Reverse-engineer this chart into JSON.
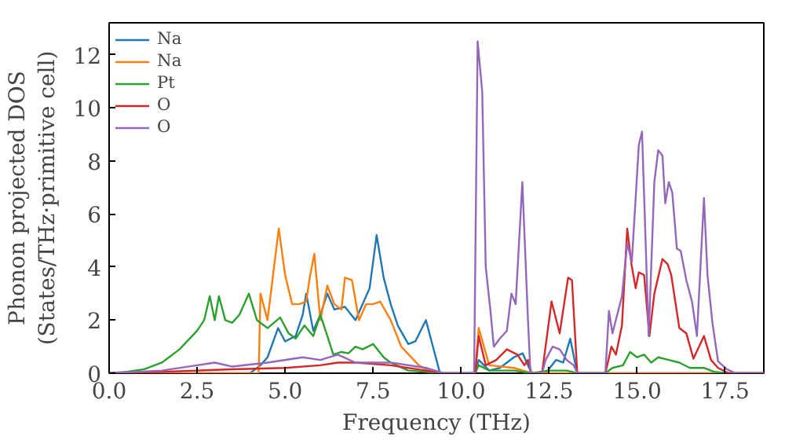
{
  "chart_data": {
    "type": "line",
    "xlabel": "Frequency (THz)",
    "ylabel": "Phonon projected DOS\n(States/THz·primitive cell)",
    "xlim": [
      0,
      18.6
    ],
    "ylim": [
      0,
      13.2
    ],
    "xticks": [
      {
        "value": 0,
        "label": "0.0"
      },
      {
        "value": 2.5,
        "label": "2.5"
      },
      {
        "value": 5,
        "label": "5.0"
      },
      {
        "value": 7.5,
        "label": "7.5"
      },
      {
        "value": 10,
        "label": "10.0"
      },
      {
        "value": 12.5,
        "label": "12.5"
      },
      {
        "value": 15,
        "label": "15.0"
      },
      {
        "value": 17.5,
        "label": "17.5"
      }
    ],
    "yticks": [
      0,
      2,
      4,
      6,
      8,
      10,
      12
    ],
    "grid": false,
    "legend": "top left",
    "marker": "none",
    "line_style": "solid",
    "series": [
      {
        "name": "Na",
        "color": "#1f77b4",
        "x": [
          0,
          4.0,
          4.3,
          4.5,
          4.8,
          5.0,
          5.3,
          5.5,
          5.6,
          5.8,
          6.0,
          6.2,
          6.4,
          6.7,
          7.0,
          7.2,
          7.4,
          7.6,
          7.8,
          8.0,
          8.2,
          8.5,
          8.7,
          9.0,
          9.2,
          9.4,
          10.4,
          10.5,
          10.8,
          11.1,
          11.5,
          11.75,
          12.0,
          12.4,
          12.7,
          12.9,
          13.1,
          13.3,
          18.6
        ],
        "values": [
          0,
          0,
          0.3,
          0.6,
          1.7,
          1.2,
          1.4,
          2.2,
          3.0,
          1.6,
          2.2,
          3.0,
          2.4,
          2.5,
          2.0,
          2.6,
          3.2,
          5.2,
          3.6,
          2.6,
          1.8,
          1.1,
          1.2,
          2.0,
          1.0,
          0,
          0,
          0.5,
          0.1,
          0.2,
          0.6,
          0.75,
          0,
          0,
          0.5,
          0.4,
          1.3,
          0,
          0
        ]
      },
      {
        "name": "Na",
        "color": "#ff7f0e",
        "x": [
          0,
          4.25,
          4.3,
          4.5,
          4.82,
          5.0,
          5.2,
          5.4,
          5.6,
          5.7,
          5.83,
          6.0,
          6.2,
          6.4,
          6.6,
          6.7,
          6.9,
          7.1,
          7.3,
          7.5,
          7.7,
          8.0,
          8.3,
          8.8,
          9.2,
          10.4,
          10.5,
          10.8,
          11.5,
          12.0,
          18.6
        ],
        "values": [
          0,
          0,
          3.0,
          2.0,
          5.45,
          3.7,
          2.6,
          2.6,
          2.7,
          3.6,
          4.5,
          2.0,
          3.3,
          2.6,
          2.4,
          3.6,
          3.5,
          2.0,
          2.6,
          2.6,
          2.7,
          2.0,
          1.0,
          0.3,
          0,
          0,
          1.7,
          0.3,
          0.2,
          0,
          0
        ]
      },
      {
        "name": "Pt",
        "color": "#2ca02c",
        "x": [
          0,
          0.5,
          1.0,
          1.5,
          2.0,
          2.5,
          2.7,
          2.86,
          3.0,
          3.12,
          3.3,
          3.5,
          3.7,
          3.97,
          4.2,
          4.5,
          4.86,
          5.1,
          5.3,
          5.55,
          5.8,
          6.0,
          6.2,
          6.37,
          6.6,
          6.8,
          7.0,
          7.2,
          7.5,
          7.8,
          8.0,
          8.5,
          9.0,
          9.5,
          10.4,
          10.5,
          10.8,
          11.5,
          12.0,
          12.5,
          13.0,
          13.3,
          14.1,
          14.3,
          14.6,
          14.8,
          15.0,
          15.2,
          15.4,
          15.6,
          15.9,
          16.2,
          16.5,
          16.9,
          17.2,
          17.5,
          18.6
        ],
        "values": [
          0,
          0.05,
          0.15,
          0.4,
          0.9,
          1.6,
          2.0,
          2.9,
          2.0,
          2.9,
          2.0,
          1.9,
          2.2,
          3.0,
          2.0,
          1.7,
          2.1,
          1.5,
          1.3,
          1.8,
          1.4,
          2.2,
          1.4,
          0.7,
          0.8,
          0.75,
          1.0,
          0.9,
          1.1,
          0.6,
          0.4,
          0.1,
          0.05,
          0,
          0,
          0.3,
          0.1,
          0.1,
          0,
          0.1,
          0.1,
          0,
          0,
          0.2,
          0.3,
          0.8,
          0.6,
          0.7,
          0.4,
          0.6,
          0.5,
          0.4,
          0.2,
          0.2,
          0.05,
          0,
          0
        ]
      },
      {
        "name": "O",
        "color": "#d62728",
        "x": [
          0,
          1.5,
          2.5,
          3.5,
          5.0,
          6.0,
          6.5,
          7.0,
          8.0,
          9.0,
          9.5,
          10.4,
          10.5,
          10.7,
          11.0,
          11.3,
          11.6,
          11.8,
          11.9,
          12.0,
          12.3,
          12.57,
          12.8,
          13.04,
          13.15,
          13.3,
          14.1,
          14.27,
          14.4,
          14.57,
          14.72,
          14.84,
          14.96,
          15.05,
          15.2,
          15.35,
          15.49,
          15.72,
          15.87,
          15.97,
          16.2,
          16.4,
          16.6,
          16.9,
          17.1,
          17.3,
          17.6,
          18.6
        ],
        "values": [
          0,
          0.05,
          0.1,
          0.15,
          0.2,
          0.3,
          0.4,
          0.4,
          0.3,
          0.1,
          0,
          0,
          1.4,
          0.3,
          0.5,
          0.9,
          0.7,
          0.3,
          0.5,
          0,
          0,
          2.7,
          1.5,
          3.6,
          3.5,
          0,
          0,
          1.0,
          0.7,
          1.8,
          5.45,
          4.1,
          3.2,
          3.8,
          3.7,
          1.4,
          3.0,
          4.3,
          4.1,
          3.7,
          1.7,
          1.5,
          0.55,
          1.4,
          0.5,
          0.2,
          0,
          0
        ]
      },
      {
        "name": "O",
        "color": "#9467bd",
        "x": [
          0,
          1.5,
          2.5,
          3.0,
          3.5,
          4.5,
          5.5,
          6.0,
          6.5,
          7.0,
          8.0,
          9.0,
          9.5,
          10.37,
          10.47,
          10.6,
          10.7,
          10.83,
          10.93,
          11.1,
          11.3,
          11.43,
          11.55,
          11.74,
          11.9,
          11.97,
          12.3,
          12.4,
          12.6,
          12.8,
          13.0,
          13.2,
          13.3,
          14.1,
          14.2,
          14.3,
          14.57,
          14.72,
          14.85,
          15.05,
          15.14,
          15.33,
          15.49,
          15.6,
          15.72,
          15.8,
          15.9,
          16.0,
          16.13,
          16.24,
          16.4,
          16.56,
          16.7,
          16.9,
          17.0,
          17.14,
          17.3,
          17.55,
          17.8,
          18.6
        ],
        "values": [
          0,
          0.1,
          0.3,
          0.4,
          0.25,
          0.4,
          0.6,
          0.5,
          0.7,
          0.4,
          0.4,
          0.2,
          0,
          0,
          12.5,
          10.6,
          4.0,
          2.4,
          1.0,
          1.3,
          1.6,
          3.0,
          2.6,
          7.2,
          2.0,
          0,
          0,
          0.5,
          1.0,
          0.9,
          0.5,
          0.3,
          0,
          0,
          2.35,
          1.5,
          2.9,
          4.9,
          4.2,
          8.6,
          9.1,
          1.4,
          7.2,
          8.4,
          8.2,
          6.4,
          7.2,
          6.8,
          4.7,
          4.6,
          3.5,
          2.7,
          1.4,
          6.6,
          3.7,
          1.9,
          0.45,
          0.15,
          0,
          0
        ]
      }
    ]
  }
}
